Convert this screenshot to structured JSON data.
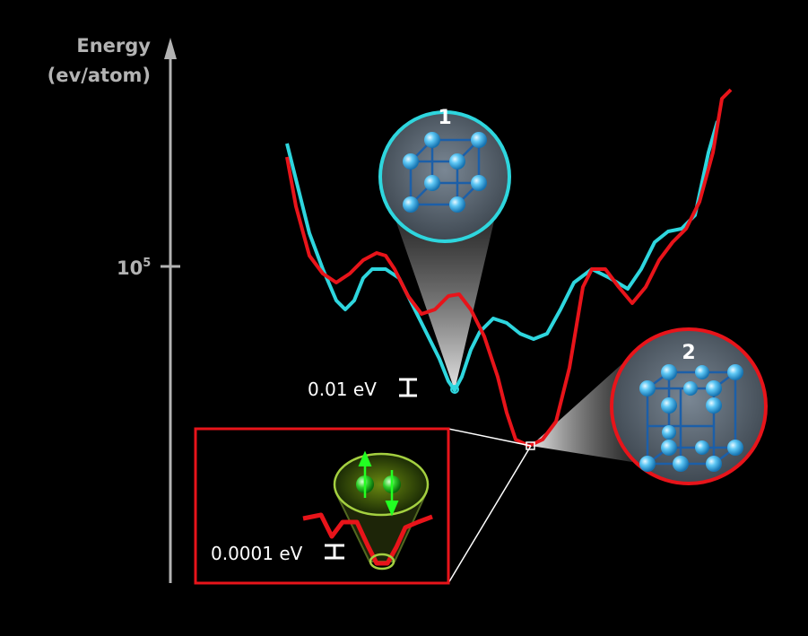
{
  "axis": {
    "label_line1": "Energy",
    "label_line2": "(ev/atom)",
    "tick_base": "10",
    "tick_exponent": "5"
  },
  "annotations": {
    "coarse_gap": "0.01 eV",
    "fine_gap": "0.0001 eV"
  },
  "structures": {
    "first": "1",
    "second": "2"
  }
}
